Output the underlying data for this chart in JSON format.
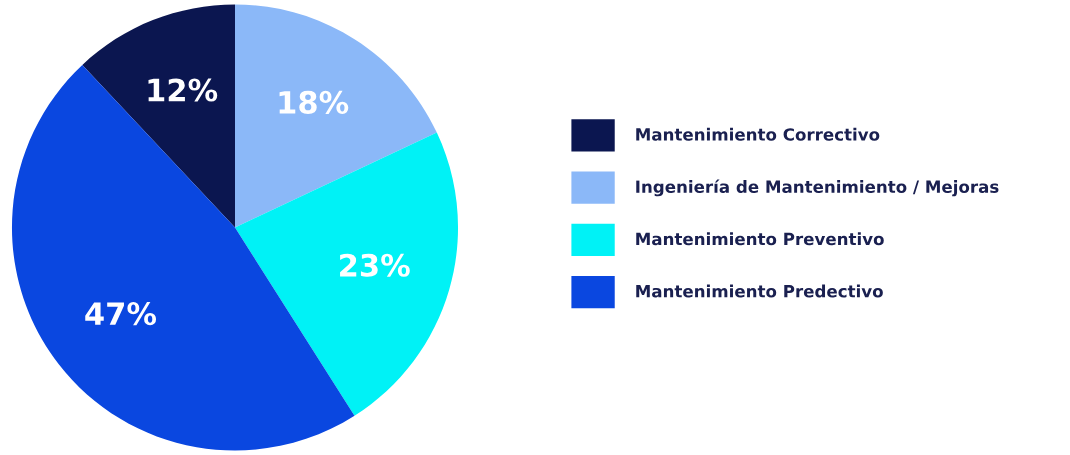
{
  "chart_data": {
    "type": "pie",
    "categories": [
      "Mantenimiento Correctivo",
      "Ingeniería de Mantenimiento / Mejoras",
      "Mantenimiento Preventivo",
      "Mantenimiento Predectivo"
    ],
    "values": [
      12,
      18,
      23,
      47
    ],
    "colors": [
      "#0b1650",
      "#8bb8f8",
      "#00f2f6",
      "#0a47e0"
    ],
    "value_labels": [
      "12%",
      "18%",
      "23%",
      "47%"
    ],
    "legend": "right"
  }
}
